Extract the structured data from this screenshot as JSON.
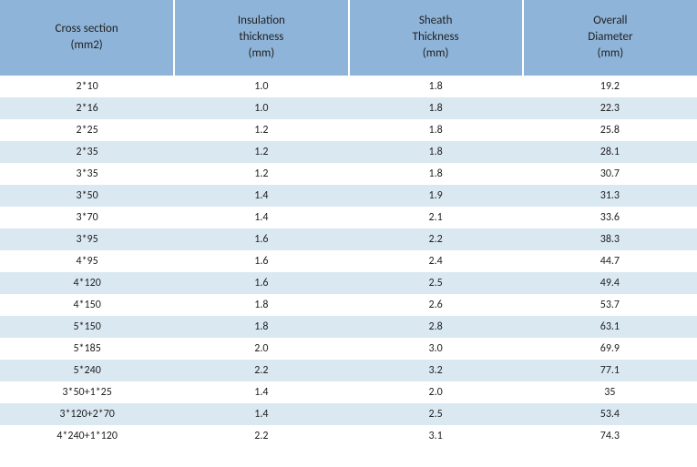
{
  "table": {
    "header_bg": "#8eb4d9",
    "row_odd_bg": "#ffffff",
    "row_even_bg": "#dae8f2",
    "text_color": "#222222",
    "header_fontsize": 13,
    "cell_fontsize": 12,
    "columns": [
      {
        "line1": "Cross section",
        "line2": "(mm2)"
      },
      {
        "line1": "Insulation",
        "line2": "thickness",
        "line3": "(mm)"
      },
      {
        "line1": "Sheath",
        "line2": "Thickness",
        "line3": "(mm)"
      },
      {
        "line1": "Overall",
        "line2": "Diameter",
        "line3": "(mm)"
      }
    ],
    "rows": [
      [
        "2*10",
        "1.0",
        "1.8",
        "19.2"
      ],
      [
        "2*16",
        "1.0",
        "1.8",
        "22.3"
      ],
      [
        "2*25",
        "1.2",
        "1.8",
        "25.8"
      ],
      [
        "2*35",
        "1.2",
        "1.8",
        "28.1"
      ],
      [
        "3*35",
        "1.2",
        "1.8",
        "30.7"
      ],
      [
        "3*50",
        "1.4",
        "1.9",
        "31.3"
      ],
      [
        "3*70",
        "1.4",
        "2.1",
        "33.6"
      ],
      [
        "3*95",
        "1.6",
        "2.2",
        "38.3"
      ],
      [
        "4*95",
        "1.6",
        "2.4",
        "44.7"
      ],
      [
        "4*120",
        "1.6",
        "2.5",
        "49.4"
      ],
      [
        "4*150",
        "1.8",
        "2.6",
        "53.7"
      ],
      [
        "5*150",
        "1.8",
        "2.8",
        "63.1"
      ],
      [
        "5*185",
        "2.0",
        "3.0",
        "69.9"
      ],
      [
        "5*240",
        "2.2",
        "3.2",
        "77.1"
      ],
      [
        "3*50+1*25",
        "1.4",
        "2.0",
        "35"
      ],
      [
        "3*120+2*70",
        "1.4",
        "2.5",
        "53.4"
      ],
      [
        "4*240+1*120",
        "2.2",
        "3.1",
        "74.3"
      ]
    ]
  }
}
